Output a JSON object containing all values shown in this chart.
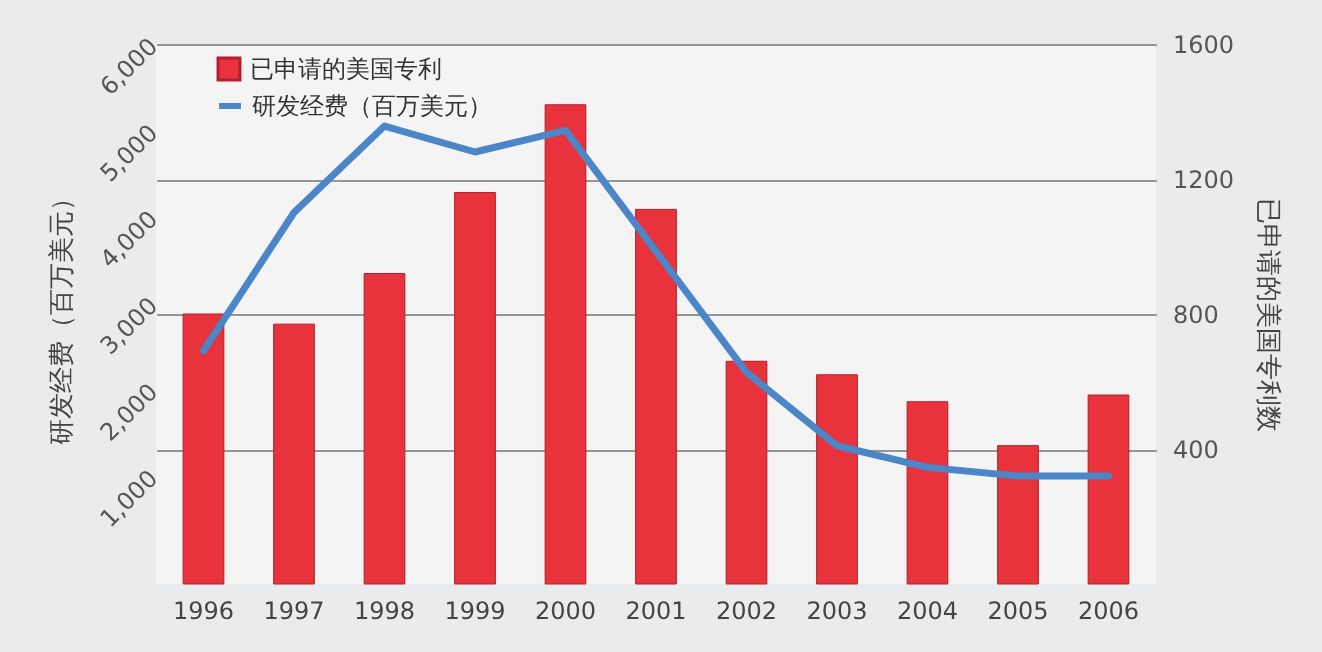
{
  "chart_data": {
    "type": "bar",
    "categories": [
      "1996",
      "1997",
      "1998",
      "1999",
      "2000",
      "2001",
      "2002",
      "2003",
      "2004",
      "2005",
      "2006"
    ],
    "series": [
      {
        "name": "已申请的美国专利",
        "axis": "y2",
        "color": "#e8323c",
        "values": [
          800,
          770,
          920,
          1160,
          1420,
          1110,
          660,
          620,
          540,
          410,
          560
        ]
      },
      {
        "name": "研发经费（百万美元）",
        "type": "line",
        "color": "#4a86c8",
        "values": [
          2700,
          4300,
          5300,
          5000,
          5250,
          3850,
          2450,
          1600,
          1350,
          1250,
          1250
        ]
      }
    ],
    "ylabel": "研发经费（百万美元）",
    "y2label": "已申请的美国专利数",
    "ylim": [
      0,
      6250
    ],
    "yticks": [
      {
        "value": 1000,
        "label": "1,000"
      },
      {
        "value": 2000,
        "label": "2,000"
      },
      {
        "value": 3000,
        "label": "3,000"
      },
      {
        "value": 4000,
        "label": "4,000"
      },
      {
        "value": 5000,
        "label": "5,000"
      },
      {
        "value": 6000,
        "label": "6,000"
      }
    ],
    "y2lim": [
      0,
      1600
    ],
    "y2ticks": [
      400,
      800,
      1200,
      1600
    ],
    "grid": true,
    "legend": "top left",
    "marker": "none",
    "line_style": "solid"
  }
}
